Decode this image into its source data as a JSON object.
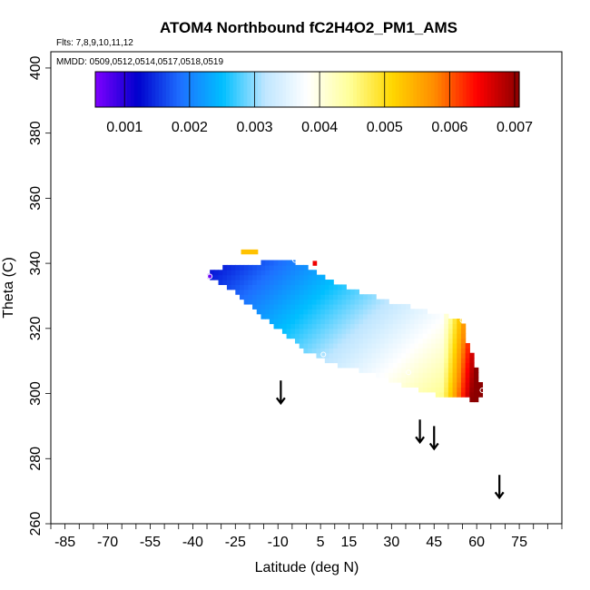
{
  "chart_data": {
    "type": "heatmap",
    "title": "ATOM4 Northbound fC2H4O2_PM1_AMS",
    "flights_text": "Flts: 7,8,9,10,11,12",
    "dates_text": "MMDD: 0509,0512,0514,0517,0518,0519",
    "xlabel": "Latitude (deg N)",
    "ylabel": "Theta (C)",
    "xlim": [
      -90,
      90
    ],
    "ylim": [
      260,
      405
    ],
    "xticks": [
      -85,
      -70,
      -55,
      -40,
      -25,
      -10,
      5,
      15,
      30,
      45,
      60,
      75
    ],
    "xminor_step": 5,
    "yticks": [
      260,
      280,
      300,
      320,
      340,
      360,
      380,
      400
    ],
    "colorbar": {
      "min": 0.00055,
      "max": 0.00707,
      "ticks": [
        "0.001",
        "0.002",
        "0.003",
        "0.004",
        "0.005",
        "0.006",
        "0.007"
      ],
      "tick_values": [
        0.001,
        0.002,
        0.003,
        0.004,
        0.005,
        0.006,
        0.007
      ],
      "colors": [
        "#7f00ff",
        "#0000cd",
        "#1e6fff",
        "#00bfff",
        "#bfe6ff",
        "#ffffff",
        "#ffff99",
        "#ffd700",
        "#ff8c00",
        "#ff0000",
        "#8b0000"
      ]
    },
    "cell_size": {
      "lat": 1.5,
      "theta": 1.5
    },
    "field_polygon": [
      [
        -35,
        337
      ],
      [
        -28,
        339
      ],
      [
        -20,
        340
      ],
      [
        -5,
        341
      ],
      [
        2,
        338
      ],
      [
        10,
        334
      ],
      [
        20,
        331
      ],
      [
        30,
        328
      ],
      [
        40,
        326
      ],
      [
        48,
        324
      ],
      [
        55,
        323
      ],
      [
        56,
        318
      ],
      [
        58,
        313
      ],
      [
        60,
        307
      ],
      [
        62,
        302
      ],
      [
        63,
        300
      ],
      [
        60,
        298
      ],
      [
        50,
        299
      ],
      [
        40,
        301
      ],
      [
        30,
        304
      ],
      [
        20,
        307
      ],
      [
        10,
        309
      ],
      [
        0,
        313
      ],
      [
        -10,
        320
      ],
      [
        -20,
        327
      ],
      [
        -28,
        333
      ],
      [
        -35,
        336
      ]
    ],
    "field_value_model": {
      "base": 0.002,
      "per_lat": 2.5e-05,
      "per_theta": -3e-05,
      "theta_ref": 310,
      "high_lat_boost_start": 48,
      "high_lat_boost": 0.00022
    },
    "extra_cells": [
      {
        "lat": -20,
        "theta": 343.5,
        "value": 0.0053,
        "width_lat": 6
      },
      {
        "lat": 3,
        "theta": 340,
        "value": 0.0065
      },
      {
        "lat": -34,
        "theta": 336,
        "value": 0.00065
      }
    ],
    "aircraft_markers": [
      {
        "lat": -34,
        "theta": 336
      },
      {
        "lat": -4,
        "theta": 341
      },
      {
        "lat": 6,
        "theta": 312
      },
      {
        "lat": 36,
        "theta": 306.5
      },
      {
        "lat": 55,
        "theta": 322.5
      },
      {
        "lat": 62,
        "theta": 301
      }
    ],
    "tropopause_arrows": [
      {
        "lat": -9,
        "theta_top": 304,
        "theta_bottom": 297
      },
      {
        "lat": 40,
        "theta_top": 292,
        "theta_bottom": 285
      },
      {
        "lat": 45,
        "theta_top": 290,
        "theta_bottom": 283
      },
      {
        "lat": 68,
        "theta_top": 275,
        "theta_bottom": 268
      }
    ],
    "grid": false,
    "legend": "colorbar inset at top"
  }
}
